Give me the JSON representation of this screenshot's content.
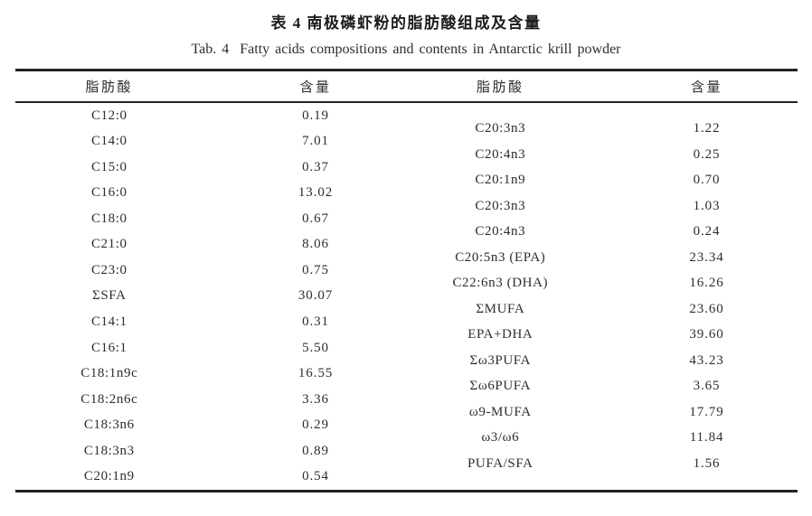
{
  "page": {
    "title_zh": "表 4 南极磷虾粉的脂肪酸组成及含量",
    "title_en": "Tab. 4  Fatty acids compositions and contents in Antarctic krill powder"
  },
  "table": {
    "col_headers": [
      "脂肪酸",
      "含量",
      "脂肪酸",
      "含量"
    ],
    "left_rows": [
      {
        "fatty_acid": "C12:0",
        "content": "0.19"
      },
      {
        "fatty_acid": "C14:0",
        "content": "7.01"
      },
      {
        "fatty_acid": "C15:0",
        "content": "0.37"
      },
      {
        "fatty_acid": "C16:0",
        "content": "13.02"
      },
      {
        "fatty_acid": "C18:0",
        "content": "0.67"
      },
      {
        "fatty_acid": "C21:0",
        "content": "8.06"
      },
      {
        "fatty_acid": "C23:0",
        "content": "0.75"
      },
      {
        "fatty_acid": "ΣSFA",
        "content": "30.07"
      },
      {
        "fatty_acid": "C14:1",
        "content": "0.31"
      },
      {
        "fatty_acid": "C16:1",
        "content": "5.50"
      },
      {
        "fatty_acid": "C18:1n9c",
        "content": "16.55"
      },
      {
        "fatty_acid": "C18:2n6c",
        "content": "3.36"
      },
      {
        "fatty_acid": "C18:3n6",
        "content": "0.29"
      },
      {
        "fatty_acid": "C18:3n3",
        "content": "0.89"
      },
      {
        "fatty_acid": "C20:1n9",
        "content": "0.54"
      }
    ],
    "right_rows": [
      {
        "fatty_acid": "C20:3n3",
        "content": "1.22"
      },
      {
        "fatty_acid": "C20:4n3",
        "content": "0.25"
      },
      {
        "fatty_acid": "C20:1n9",
        "content": "0.70"
      },
      {
        "fatty_acid": "C20:3n3",
        "content": "1.03"
      },
      {
        "fatty_acid": "C20:4n3",
        "content": "0.24"
      },
      {
        "fatty_acid": "C20:5n3 (EPA)",
        "content": "23.34"
      },
      {
        "fatty_acid": "C22:6n3 (DHA)",
        "content": "16.26"
      },
      {
        "fatty_acid": "ΣMUFA",
        "content": "23.60"
      },
      {
        "fatty_acid": "EPA+DHA",
        "content": "39.60"
      },
      {
        "fatty_acid": "Σω3PUFA",
        "content": "43.23"
      },
      {
        "fatty_acid": "Σω6PUFA",
        "content": "3.65"
      },
      {
        "fatty_acid": "ω9-MUFA",
        "content": "17.79"
      },
      {
        "fatty_acid": "ω3/ω6",
        "content": "11.84"
      },
      {
        "fatty_acid": "PUFA/SFA",
        "content": "1.56"
      }
    ]
  },
  "colors": {
    "background": "#ffffff",
    "text": "#2d2d2d",
    "rule": "#232323"
  }
}
